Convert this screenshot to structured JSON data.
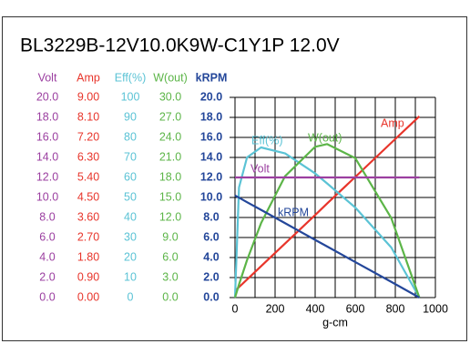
{
  "chart_data": {
    "type": "line",
    "title": "BL3229B-12V10.0K9W-C1Y1P   12.0V",
    "xlabel": "g-cm",
    "xlim": [
      0,
      1000
    ],
    "xticks": [
      0,
      200,
      400,
      600,
      800,
      1000
    ],
    "grid": true,
    "axes": [
      {
        "name": "Volt",
        "color": "#9b3fa0",
        "lim": [
          0,
          20
        ],
        "ticks": [
          {
            "value": 0,
            "label": "0.0"
          },
          {
            "value": 2,
            "label": "2.0"
          },
          {
            "value": 4,
            "label": "4.0"
          },
          {
            "value": 6,
            "label": "6.0"
          },
          {
            "value": 8,
            "label": "8.0"
          },
          {
            "value": 10,
            "label": "10.0"
          },
          {
            "value": 12,
            "label": "12.0"
          },
          {
            "value": 14,
            "label": "14.0"
          },
          {
            "value": 16,
            "label": "16.0"
          },
          {
            "value": 18,
            "label": "18.0"
          },
          {
            "value": 20,
            "label": "20.0"
          }
        ]
      },
      {
        "name": "Amp",
        "color": "#e8352b",
        "lim": [
          0,
          9
        ],
        "ticks": [
          {
            "value": 0,
            "label": "0.00"
          },
          {
            "value": 0.9,
            "label": "0.90"
          },
          {
            "value": 1.8,
            "label": "1.80"
          },
          {
            "value": 2.7,
            "label": "2.70"
          },
          {
            "value": 3.6,
            "label": "3.60"
          },
          {
            "value": 4.5,
            "label": "4.50"
          },
          {
            "value": 5.4,
            "label": "5.40"
          },
          {
            "value": 6.3,
            "label": "6.30"
          },
          {
            "value": 7.2,
            "label": "7.20"
          },
          {
            "value": 8.1,
            "label": "8.10"
          },
          {
            "value": 9,
            "label": "9.00"
          }
        ]
      },
      {
        "name": "Eff(%)",
        "color": "#5bc3d5",
        "lim": [
          0,
          100
        ],
        "ticks": [
          0,
          10,
          20,
          30,
          40,
          50,
          60,
          70,
          80,
          90,
          100
        ]
      },
      {
        "name": "W(out)",
        "color": "#5cb548",
        "lim": [
          0,
          30
        ],
        "ticks": [
          {
            "value": 0,
            "label": "0.0"
          },
          {
            "value": 3,
            "label": "3.0"
          },
          {
            "value": 6,
            "label": "6.0"
          },
          {
            "value": 9,
            "label": "9.0"
          },
          {
            "value": 12,
            "label": "12.0"
          },
          {
            "value": 15,
            "label": "15.0"
          },
          {
            "value": 18,
            "label": "18.0"
          },
          {
            "value": 21,
            "label": "21.0"
          },
          {
            "value": 24,
            "label": "24.0"
          },
          {
            "value": 27,
            "label": "27.0"
          },
          {
            "value": 30,
            "label": "30.0"
          }
        ]
      },
      {
        "name": "kRPM",
        "color": "#24479a",
        "lim": [
          0,
          20
        ],
        "ticks": [
          {
            "value": 0,
            "label": "0.0"
          },
          {
            "value": 2,
            "label": "2.0"
          },
          {
            "value": 4,
            "label": "4.0"
          },
          {
            "value": 6,
            "label": "6.0"
          },
          {
            "value": 8,
            "label": "8.0"
          },
          {
            "value": 10,
            "label": "10.0"
          },
          {
            "value": 12,
            "label": "12.0"
          },
          {
            "value": 14,
            "label": "14.0"
          },
          {
            "value": 16,
            "label": "16.0"
          },
          {
            "value": 18,
            "label": "18.0"
          },
          {
            "value": 20,
            "label": "20.0"
          }
        ]
      }
    ],
    "x": [
      0,
      20,
      60,
      130,
      250,
      400,
      460,
      600,
      780,
      920
    ],
    "series": [
      {
        "name": "Amp",
        "axis": 1,
        "color": "#e8352b",
        "values": [
          0.3,
          0.47,
          0.81,
          1.41,
          2.43,
          3.71,
          4.23,
          5.42,
          6.96,
          8.15
        ]
      },
      {
        "name": "Eff(%)",
        "axis": 2,
        "color": "#5bc3d5",
        "values": [
          0,
          55,
          70,
          75,
          72,
          62,
          57,
          45,
          25,
          0
        ]
      },
      {
        "name": "W(out)",
        "axis": 3,
        "color": "#5cb548",
        "values": [
          0,
          1.96,
          5.61,
          11.14,
          18.2,
          22.6,
          23,
          20.9,
          11.9,
          0
        ]
      },
      {
        "name": "Volt",
        "axis": 0,
        "color": "#9b3fa0",
        "values": [
          12,
          12,
          12,
          12,
          12,
          12,
          12,
          12,
          12,
          12
        ]
      },
      {
        "name": "kRPM",
        "axis": 4,
        "color": "#24479a",
        "values": [
          10.2,
          9.98,
          9.53,
          8.76,
          7.43,
          5.76,
          5.1,
          3.55,
          1.57,
          0
        ]
      }
    ]
  }
}
